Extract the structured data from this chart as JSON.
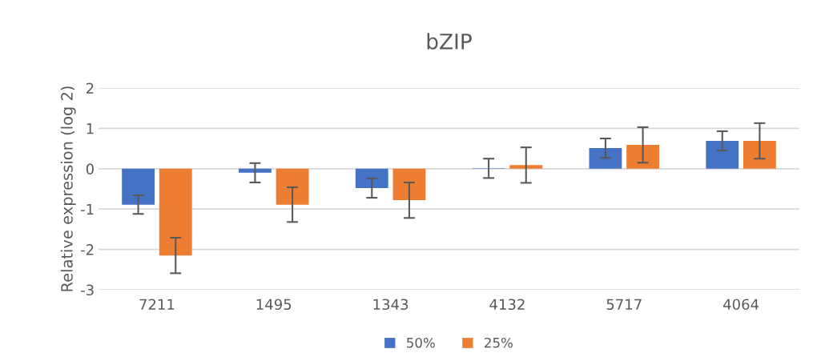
{
  "chart_data": {
    "type": "bar",
    "title": "bZIP",
    "ylabel": "Relative expression (log 2)",
    "categories": [
      "7211",
      "1495",
      "1343",
      "4132",
      "5717",
      "4064"
    ],
    "series": [
      {
        "name": "50%",
        "color": "#4472c4",
        "values": [
          -0.89,
          -0.1,
          -0.48,
          0.01,
          0.51,
          0.69
        ],
        "errors": [
          0.23,
          0.24,
          0.24,
          0.24,
          0.24,
          0.24
        ]
      },
      {
        "name": "25%",
        "color": "#ed7d31",
        "values": [
          -2.15,
          -0.89,
          -0.78,
          0.09,
          0.59,
          0.69
        ],
        "errors": [
          0.44,
          0.43,
          0.44,
          0.44,
          0.44,
          0.44
        ]
      }
    ],
    "ylim": [
      -3,
      2
    ],
    "yticks": [
      -3,
      -2,
      -1,
      0,
      1,
      2
    ],
    "grid": "y",
    "legend": "bottom"
  }
}
